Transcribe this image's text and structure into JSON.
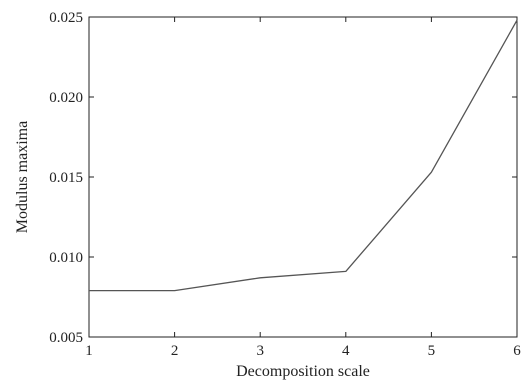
{
  "chart_data": {
    "type": "line",
    "title": "",
    "xlabel": "Decomposition scale",
    "ylabel": "Modulus maxima",
    "x": [
      1,
      2,
      3,
      4,
      5,
      6
    ],
    "series": [
      {
        "values": [
          0.0079,
          0.0079,
          0.0087,
          0.0091,
          0.0153,
          0.0248
        ]
      }
    ],
    "xlim": [
      1,
      6
    ],
    "ylim": [
      0.005,
      0.025
    ],
    "xticks": [
      1,
      2,
      3,
      4,
      5,
      6
    ],
    "xtick_labels": [
      "1",
      "2",
      "3",
      "4",
      "5",
      "6"
    ],
    "yticks": [
      0.005,
      0.01,
      0.015,
      0.02,
      0.025
    ],
    "ytick_labels": [
      "0.005",
      "0.010",
      "0.015",
      "0.020",
      "0.025"
    ],
    "grid": false,
    "legend": "none",
    "colors": {
      "line": "#555555",
      "axis": "#222222",
      "background": "#ffffff"
    }
  }
}
